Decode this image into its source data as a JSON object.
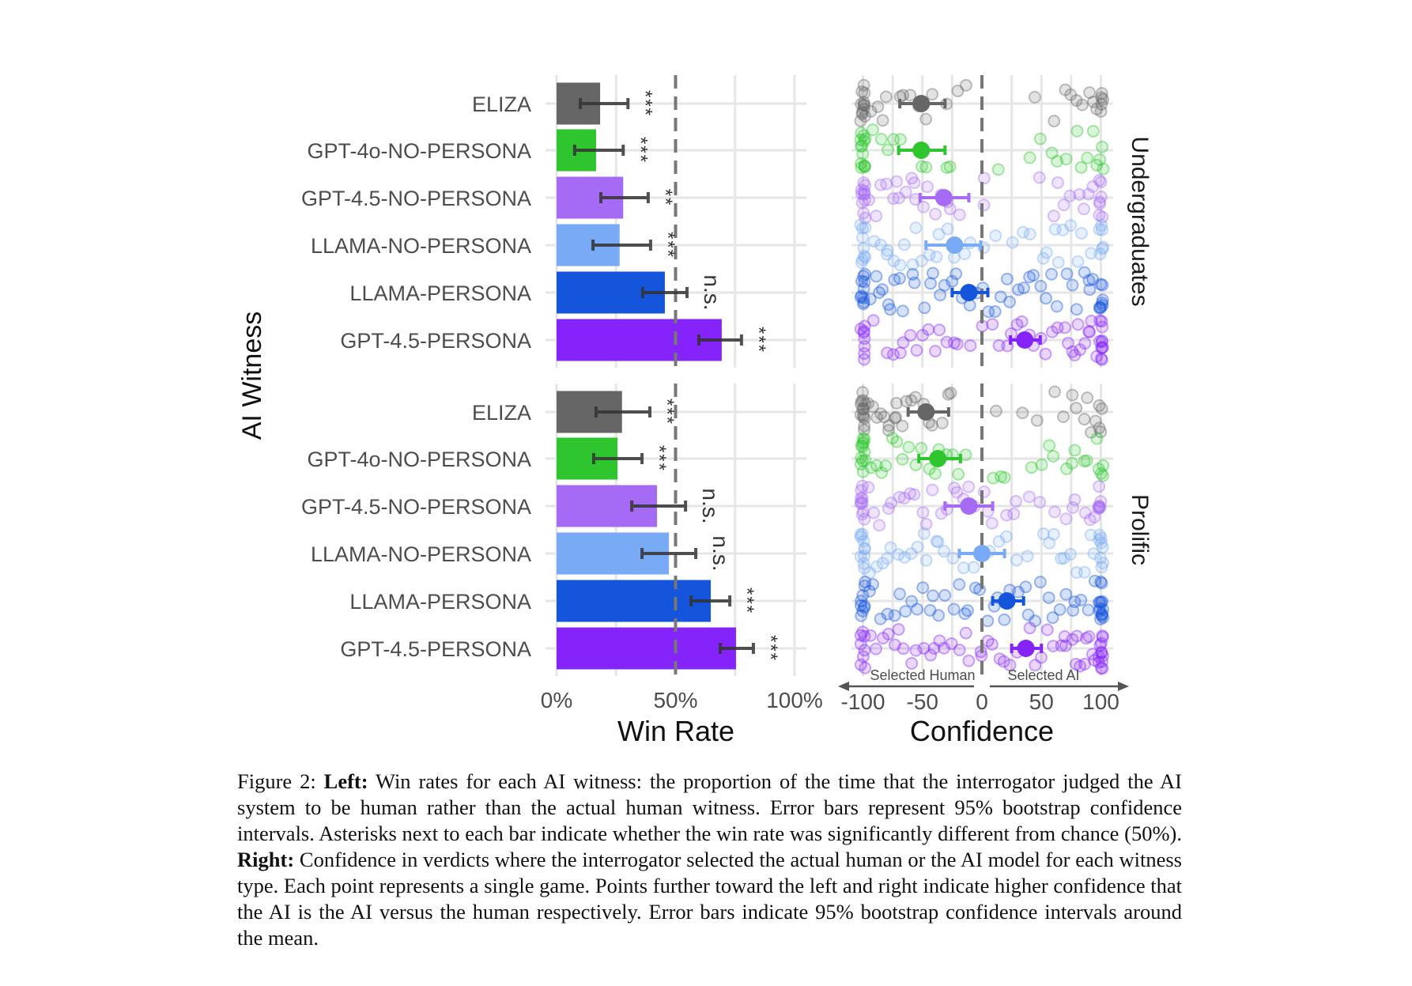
{
  "colors": {
    "ELIZA": "#666666",
    "GPT-4o-NO-PERSONA": "#2ec52e",
    "GPT-4.5-NO-PERSONA": "#a66bf5",
    "LLAMA-NO-PERSONA": "#78aaf5",
    "LLAMA-PERSONA": "#1555dc",
    "GPT-4.5-PERSONA": "#8424fa",
    "reference_line": "#777777",
    "grid": "#e6e6e6"
  },
  "chart_data": [
    {
      "type": "bar",
      "orientation": "horizontal",
      "ylabel": "AI Witness",
      "xlabel": "Win Rate",
      "xlim": [
        0,
        100
      ],
      "xticks": [
        "0%",
        "50%",
        "100%"
      ],
      "reference_line": 50,
      "grid": true,
      "categories": [
        "ELIZA",
        "GPT-4o-NO-PERSONA",
        "GPT-4.5-NO-PERSONA",
        "LLAMA-NO-PERSONA",
        "LLAMA-PERSONA",
        "GPT-4.5-PERSONA"
      ],
      "panels": [
        {
          "name": "Undergraduates",
          "values": [
            18.3,
            16.6,
            28.0,
            26.5,
            45.5,
            69.4
          ],
          "ci_low": [
            10.0,
            7.6,
            18.6,
            15.3,
            36.2,
            59.8
          ],
          "ci_high": [
            30.0,
            28.0,
            38.5,
            39.5,
            54.8,
            77.7
          ],
          "significance": [
            "***",
            "***",
            "**",
            "***",
            "n.s.",
            "***"
          ]
        },
        {
          "name": "Prolific",
          "values": [
            27.5,
            25.6,
            42.2,
            47.2,
            64.8,
            75.4
          ],
          "ci_low": [
            16.6,
            15.6,
            31.6,
            35.9,
            56.5,
            68.8
          ],
          "ci_high": [
            39.2,
            35.9,
            54.2,
            58.5,
            72.8,
            82.7
          ],
          "significance": [
            "***",
            "***",
            "n.s.",
            "n.s.",
            "***",
            "***"
          ]
        }
      ]
    },
    {
      "type": "scatter",
      "xlabel": "Confidence",
      "xlim": [
        -100,
        100
      ],
      "xticks": [
        "-100",
        "-50",
        "0",
        "50",
        "100"
      ],
      "reference_line": 0,
      "grid": true,
      "annotations": {
        "left": "Selected Human",
        "right": "Selected AI"
      },
      "categories": [
        "ELIZA",
        "GPT-4o-NO-PERSONA",
        "GPT-4.5-NO-PERSONA",
        "LLAMA-NO-PERSONA",
        "LLAMA-PERSONA",
        "GPT-4.5-PERSONA"
      ],
      "panels": [
        {
          "name": "Undergraduates",
          "means": [
            -51,
            -51,
            -32,
            -23,
            -11,
            36
          ],
          "ci_low": [
            -69,
            -70,
            -52,
            -47,
            -25,
            24
          ],
          "ci_high": [
            -31,
            -31,
            -11,
            -1,
            5,
            49
          ],
          "points": [
            [
              -100,
              -100,
              -100,
              -100,
              -100,
              -100,
              -100,
              -100,
              -100,
              -100,
              -100,
              -100,
              -95,
              -88,
              -85,
              -80,
              -70,
              -65,
              -60,
              -55,
              -48,
              -40,
              -30,
              -20,
              -15,
              45,
              60,
              70,
              75,
              80,
              85,
              90,
              92,
              95,
              100,
              100,
              100,
              100,
              100
            ],
            [
              -100,
              -100,
              -100,
              -100,
              -100,
              -100,
              -100,
              -100,
              -100,
              -100,
              -100,
              -100,
              -100,
              -90,
              -85,
              -80,
              -75,
              -70,
              -50,
              -48,
              -45,
              -30,
              -25,
              15,
              40,
              50,
              60,
              65,
              70,
              80,
              85,
              90,
              92,
              95,
              100,
              100,
              100
            ],
            [
              -100,
              -100,
              -100,
              -100,
              -100,
              -100,
              -100,
              -100,
              -100,
              -100,
              -100,
              -95,
              -90,
              -85,
              -80,
              -75,
              -70,
              -65,
              -60,
              -55,
              -48,
              -45,
              -35,
              -25,
              -20,
              0,
              0,
              -30,
              -40,
              -55,
              -70,
              50,
              60,
              65,
              70,
              75,
              80,
              85,
              90,
              95,
              100,
              100,
              100,
              100,
              100,
              100,
              100
            ],
            [
              -100,
              -100,
              -100,
              -100,
              -100,
              -100,
              -100,
              -100,
              -100,
              -90,
              -85,
              -80,
              -80,
              -75,
              -70,
              -65,
              -60,
              -55,
              -50,
              -45,
              -40,
              -35,
              -30,
              -25,
              -15,
              -10,
              0,
              10,
              25,
              35,
              40,
              50,
              55,
              60,
              65,
              70,
              75,
              80,
              85,
              90,
              100,
              100,
              100,
              100,
              100,
              100
            ],
            [
              -100,
              -100,
              -100,
              -100,
              -100,
              -100,
              -100,
              -100,
              -100,
              -100,
              -95,
              -90,
              -88,
              -85,
              -80,
              -78,
              -75,
              -70,
              -65,
              -60,
              -55,
              -50,
              -45,
              -40,
              -35,
              -30,
              -25,
              -20,
              -15,
              -10,
              -5,
              0,
              5,
              10,
              15,
              20,
              25,
              30,
              35,
              40,
              45,
              50,
              55,
              60,
              65,
              70,
              75,
              80,
              85,
              88,
              90,
              95,
              100,
              100,
              100,
              100,
              100,
              100,
              100,
              100
            ],
            [
              -100,
              -100,
              -100,
              -100,
              -100,
              -100,
              -100,
              -100,
              -90,
              -80,
              -75,
              -70,
              -65,
              -60,
              -55,
              -50,
              -45,
              -40,
              -35,
              -30,
              -25,
              -20,
              -10,
              0,
              10,
              15,
              20,
              25,
              30,
              35,
              40,
              45,
              50,
              55,
              60,
              65,
              70,
              72,
              75,
              78,
              80,
              82,
              85,
              88,
              90,
              92,
              95,
              100,
              100,
              100,
              100,
              100,
              100,
              100,
              100,
              100,
              100,
              100
            ]
          ]
        },
        {
          "name": "Prolific",
          "means": [
            -47,
            -37,
            -11,
            0,
            21,
            37
          ],
          "ci_low": [
            -62,
            -53,
            -31,
            -19,
            9,
            25
          ],
          "ci_high": [
            -28,
            -18,
            9,
            19,
            35,
            50
          ],
          "points": [
            [
              -100,
              -100,
              -100,
              -100,
              -100,
              -100,
              -100,
              -100,
              -100,
              -100,
              -100,
              -100,
              -100,
              -95,
              -90,
              -88,
              -85,
              -82,
              -80,
              -78,
              -75,
              -72,
              -70,
              -65,
              -62,
              -60,
              -55,
              -50,
              -45,
              -40,
              -35,
              -30,
              -25,
              10,
              35,
              45,
              60,
              70,
              75,
              80,
              85,
              88,
              90,
              95,
              100,
              100,
              100,
              100
            ],
            [
              -100,
              -100,
              -100,
              -100,
              -100,
              -100,
              -100,
              -100,
              -100,
              -100,
              -100,
              -100,
              -95,
              -90,
              -85,
              -80,
              -75,
              -70,
              -65,
              -60,
              -55,
              -50,
              -45,
              -40,
              -35,
              -30,
              -25,
              -20,
              -15,
              10,
              15,
              20,
              40,
              50,
              55,
              60,
              70,
              75,
              80,
              85,
              90,
              95,
              100,
              100,
              100,
              100
            ],
            [
              -100,
              -100,
              -100,
              -100,
              -100,
              -100,
              -100,
              -100,
              -100,
              -100,
              -95,
              -90,
              -85,
              -80,
              -75,
              -70,
              -65,
              -60,
              -55,
              -50,
              -45,
              -40,
              -35,
              -30,
              -25,
              -20,
              -15,
              -10,
              -5,
              0,
              5,
              10,
              20,
              25,
              30,
              40,
              50,
              60,
              70,
              75,
              80,
              85,
              90,
              95,
              100,
              100,
              100,
              100,
              100,
              100,
              100
            ],
            [
              -100,
              -100,
              -100,
              -100,
              -100,
              -100,
              -100,
              -100,
              -100,
              -100,
              -95,
              -90,
              -85,
              -80,
              -75,
              -70,
              -65,
              -60,
              -55,
              -50,
              -45,
              -40,
              -35,
              -30,
              -25,
              -15,
              -5,
              5,
              15,
              20,
              30,
              40,
              50,
              55,
              60,
              65,
              70,
              75,
              80,
              85,
              90,
              95,
              100,
              100,
              100,
              100,
              100,
              100,
              100,
              100
            ],
            [
              -100,
              -100,
              -100,
              -100,
              -100,
              -100,
              -100,
              -100,
              -100,
              -95,
              -90,
              -85,
              -80,
              -75,
              -70,
              -65,
              -60,
              -55,
              -50,
              -45,
              -40,
              -35,
              -30,
              -25,
              -20,
              -15,
              -10,
              -5,
              0,
              5,
              10,
              15,
              20,
              25,
              30,
              35,
              40,
              45,
              50,
              55,
              60,
              65,
              70,
              75,
              80,
              85,
              90,
              95,
              100,
              100,
              100,
              100,
              100,
              100,
              100,
              100,
              100,
              100,
              100,
              100,
              100,
              100
            ],
            [
              -100,
              -100,
              -100,
              -100,
              -100,
              -100,
              -100,
              -100,
              -95,
              -90,
              -85,
              -80,
              -75,
              -70,
              -65,
              -60,
              -55,
              -50,
              -45,
              -40,
              -35,
              -30,
              -25,
              -20,
              -15,
              -10,
              0,
              0,
              5,
              10,
              15,
              20,
              25,
              30,
              35,
              40,
              45,
              50,
              55,
              60,
              65,
              70,
              72,
              75,
              78,
              80,
              82,
              85,
              88,
              90,
              92,
              95,
              100,
              100,
              100,
              100,
              100,
              100,
              100,
              100,
              100,
              100,
              100,
              100
            ]
          ]
        }
      ]
    }
  ],
  "caption": {
    "parts": [
      {
        "text": "Figure 2: ",
        "bold": false
      },
      {
        "text": "Left:",
        "bold": true
      },
      {
        "text": " Win rates for each AI witness: the proportion of the time that the interrogator judged the AI system to be human rather than the actual human witness. Error bars represent 95% bootstrap confidence intervals.  Asterisks next to each bar indicate whether the win rate was significantly different from chance (50%).  ",
        "bold": false
      },
      {
        "text": "Right:",
        "bold": true
      },
      {
        "text": " Confidence in verdicts where the interrogator selected the actual human or the AI model for each witness type. Each point represents a single game. Points further toward the left and right indicate higher confidence that the AI is the AI versus the human respectively. Error bars indicate 95% bootstrap confidence intervals around the mean.",
        "bold": false
      }
    ]
  }
}
